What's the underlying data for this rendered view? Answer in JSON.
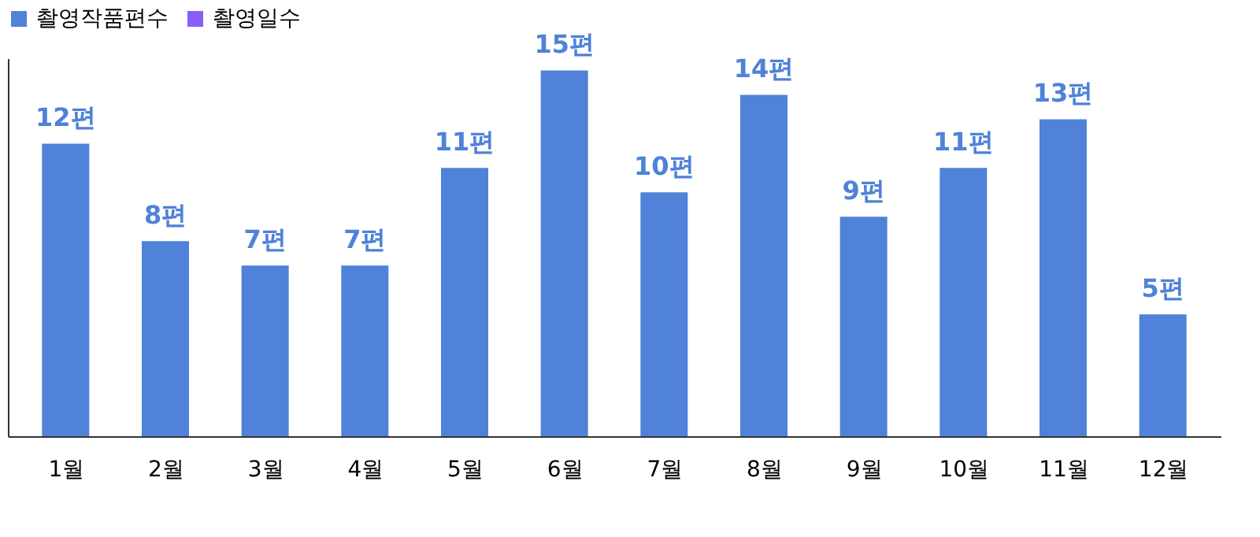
{
  "chart_data": {
    "type": "bar",
    "categories": [
      "1월",
      "2월",
      "3월",
      "4월",
      "5월",
      "6월",
      "7월",
      "8월",
      "9월",
      "10월",
      "11월",
      "12월"
    ],
    "series": [
      {
        "name": "촬영작품편수",
        "color": "#4f82d8",
        "values": [
          12,
          8,
          7,
          7,
          11,
          15,
          10,
          14,
          9,
          11,
          13,
          5
        ],
        "value_labels": [
          "12편",
          "8편",
          "7편",
          "7편",
          "11편",
          "15편",
          "10편",
          "14편",
          "9편",
          "11편",
          "13편",
          "5편"
        ]
      },
      {
        "name": "촬영일수",
        "color": "#8b5cf6",
        "values": [
          null,
          null,
          null,
          null,
          null,
          null,
          null,
          null,
          null,
          null,
          null,
          null
        ]
      }
    ],
    "ylim": [
      0,
      15.5
    ],
    "grid": false,
    "legend": "top",
    "tick_labels": "x"
  }
}
